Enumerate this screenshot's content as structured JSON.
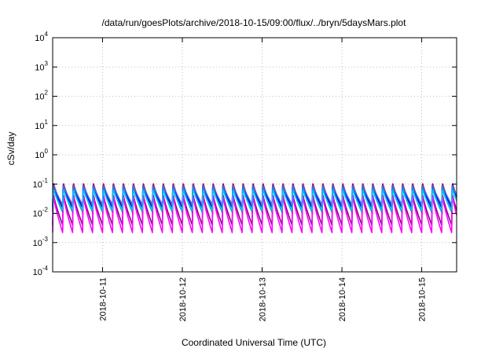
{
  "chart_data": {
    "type": "line",
    "title": "/data/run/goesPlots/archive/2018-10-15/09:00/flux/../bryn/5daysMars.plot",
    "xlabel": "Coordinated Universal Time (UTC)",
    "ylabel": "cSv/day",
    "yscale": "log",
    "ylim": [
      0.0001,
      10000
    ],
    "xlim": [
      "2018-10-10 09:00",
      "2018-10-15 10:30"
    ],
    "grid": true,
    "legend": "none",
    "y_ticks": [
      {
        "value": 0.0001,
        "base": "10",
        "exp": "-4"
      },
      {
        "value": 0.001,
        "base": "10",
        "exp": "-3"
      },
      {
        "value": 0.01,
        "base": "10",
        "exp": "-2"
      },
      {
        "value": 0.1,
        "base": "10",
        "exp": "-1"
      },
      {
        "value": 1,
        "base": "10",
        "exp": "0"
      },
      {
        "value": 10,
        "base": "10",
        "exp": "1"
      },
      {
        "value": 100,
        "base": "10",
        "exp": "2"
      },
      {
        "value": 1000,
        "base": "10",
        "exp": "3"
      },
      {
        "value": 10000,
        "base": "10",
        "exp": "4"
      }
    ],
    "x_ticks": [
      "2018-10-11",
      "2018-10-12",
      "2018-10-13",
      "2018-10-14",
      "2018-10-15"
    ],
    "cycles_per_day": 8,
    "series": [
      {
        "color": "#ff0000",
        "peak": 0.12,
        "trough": 0.016
      },
      {
        "color": "#0000ff",
        "peak": 0.11,
        "trough": 0.014
      },
      {
        "color": "#00aaaa",
        "peak": 0.08,
        "trough": 0.011
      },
      {
        "color": "#8b008b",
        "peak": 0.05,
        "trough": 0.004
      },
      {
        "color": "#ff00ff",
        "peak": 0.045,
        "trough": 0.0022
      },
      {
        "color": "#4169e1",
        "peak": 0.1,
        "trough": 0.02
      },
      {
        "color": "#00bfff",
        "peak": 0.07,
        "trough": 0.013
      }
    ]
  }
}
